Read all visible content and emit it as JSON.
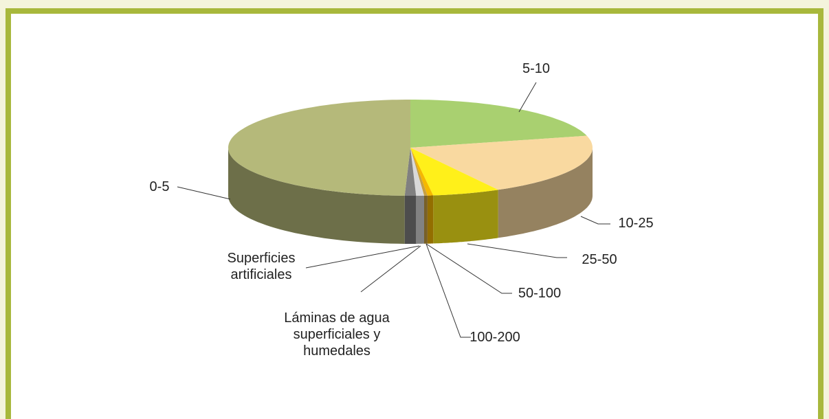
{
  "chart_data": {
    "type": "pie3d",
    "categories": [
      "5-10",
      "10-25",
      "25-50",
      "50-100",
      "100-200",
      "Láminas de agua superficiales y humedales",
      "Superficies artificiales",
      "0-5"
    ],
    "values": [
      21,
      21,
      6,
      0.5,
      0.3,
      0.7,
      1.0,
      49.5
    ],
    "colors": [
      "#a9d070",
      "#f9d9a0",
      "#fff01a",
      "#f5b800",
      "#c8a040",
      "#d9d9d9",
      "#808080",
      "#b5b97a"
    ]
  }
}
